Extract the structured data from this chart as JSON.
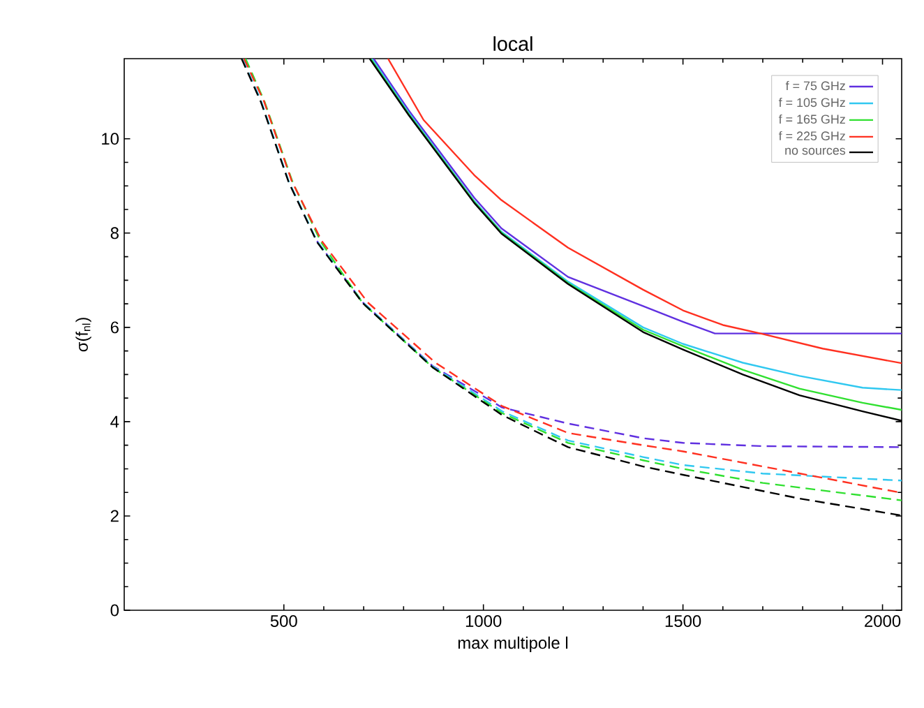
{
  "chart_data": {
    "type": "line",
    "title": "local",
    "xlabel": "max multipole l",
    "ylabel": "σ(f$_{nl}$)",
    "xlim": [
      100,
      2048
    ],
    "ylim": [
      0,
      11.7
    ],
    "xticks": [
      500,
      1000,
      1500,
      2000
    ],
    "yticks": [
      0,
      2,
      4,
      6,
      8,
      10
    ],
    "grid": false,
    "legend": "top right",
    "marker": "none",
    "series": [
      {
        "name": "f = 75 GHz",
        "color": "#6030e0",
        "line_style": "solid",
        "x": [
          725,
          813,
          977,
          1045,
          1212,
          1400,
          1500,
          1580,
          1700,
          1900,
          2048
        ],
        "values": [
          11.7,
          10.6,
          8.75,
          8.1,
          7.07,
          6.45,
          6.12,
          5.87,
          5.87,
          5.87,
          5.87
        ]
      },
      {
        "name": "f = 105 GHz",
        "color": "#30c8f0",
        "line_style": "solid",
        "x": [
          720,
          813,
          977,
          1045,
          1212,
          1400,
          1500,
          1650,
          1792,
          1950,
          2048
        ],
        "values": [
          11.7,
          10.55,
          8.68,
          8.03,
          6.97,
          6.0,
          5.65,
          5.25,
          4.97,
          4.72,
          4.67
        ]
      },
      {
        "name": "f = 165 GHz",
        "color": "#30e030",
        "line_style": "solid",
        "x": [
          717,
          813,
          977,
          1045,
          1212,
          1400,
          1500,
          1650,
          1792,
          1950,
          2048
        ],
        "values": [
          11.7,
          10.52,
          8.66,
          8.01,
          6.94,
          5.95,
          5.6,
          5.1,
          4.7,
          4.4,
          4.25
        ]
      },
      {
        "name": "f = 225 GHz",
        "color": "#ff3020",
        "line_style": "solid",
        "x": [
          761,
          850,
          977,
          1045,
          1212,
          1400,
          1500,
          1600,
          1700,
          1850,
          2048
        ],
        "values": [
          11.7,
          10.4,
          9.23,
          8.7,
          7.69,
          6.8,
          6.36,
          6.05,
          5.86,
          5.55,
          5.24
        ]
      },
      {
        "name": "no sources",
        "color": "#000000",
        "line_style": "solid",
        "x": [
          715,
          813,
          977,
          1045,
          1212,
          1400,
          1500,
          1650,
          1792,
          1950,
          2048
        ],
        "values": [
          11.7,
          10.5,
          8.64,
          7.99,
          6.92,
          5.9,
          5.53,
          5.0,
          4.56,
          4.22,
          4.02
        ]
      },
      {
        "color": "#6030e0",
        "line_style": "dashed",
        "x": [
          583,
          698,
          873,
          1047,
          1212,
          1400,
          1500,
          1700,
          2048
        ],
        "values": [
          7.83,
          6.53,
          5.18,
          4.3,
          3.96,
          3.65,
          3.55,
          3.48,
          3.46
        ]
      },
      {
        "color": "#30c8f0",
        "line_style": "dashed",
        "x": [
          396,
          443,
          512,
          583,
          698,
          873,
          1047,
          1212,
          1400,
          1500,
          1700,
          2048
        ],
        "values": [
          11.7,
          10.8,
          9.1,
          7.83,
          6.53,
          5.17,
          4.22,
          3.6,
          3.25,
          3.08,
          2.9,
          2.75
        ]
      },
      {
        "color": "#30e030",
        "line_style": "dashed",
        "x": [
          404,
          452,
          522,
          593,
          698,
          873,
          1047,
          1212,
          1400,
          1500,
          1700,
          2048
        ],
        "values": [
          11.7,
          10.78,
          9.08,
          7.81,
          6.51,
          5.15,
          4.18,
          3.55,
          3.18,
          3.0,
          2.7,
          2.33
        ]
      },
      {
        "color": "#ff3020",
        "line_style": "dashed",
        "x": [
          400,
          450,
          520,
          595,
          710,
          880,
          1047,
          1212,
          1400,
          1500,
          1700,
          2048
        ],
        "values": [
          11.7,
          10.8,
          9.1,
          7.83,
          6.53,
          5.25,
          4.33,
          3.76,
          3.5,
          3.37,
          3.05,
          2.49
        ]
      },
      {
        "color": "#000000",
        "line_style": "dashed",
        "x": [
          394,
          443,
          512,
          583,
          698,
          873,
          1047,
          1212,
          1400,
          1502,
          1792,
          2048
        ],
        "values": [
          11.7,
          10.77,
          9.08,
          7.81,
          6.51,
          5.15,
          4.14,
          3.46,
          3.05,
          2.87,
          2.37,
          2.01
        ]
      }
    ]
  }
}
